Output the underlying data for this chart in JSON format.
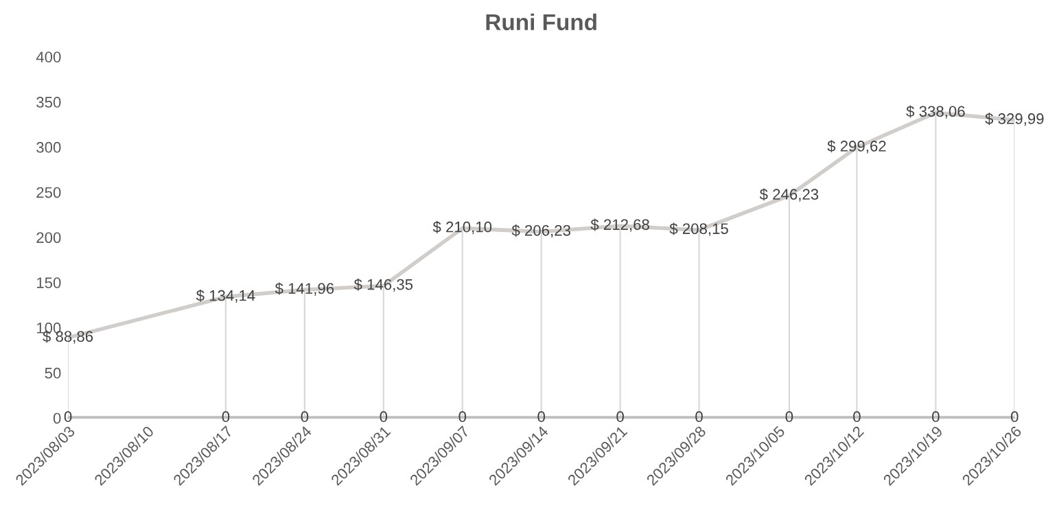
{
  "chart_data": {
    "type": "line",
    "title": "Runi Fund",
    "x": [
      "2023-08-03",
      "2023-08-17",
      "2023-08-24",
      "2023-08-31",
      "2023-09-07",
      "2023-09-14",
      "2023-09-21",
      "2023-09-28",
      "2023-10-06",
      "2023-10-12",
      "2023-10-19",
      "2023-10-26"
    ],
    "series": [
      {
        "color": "#d0cdca",
        "values": [
          88.86,
          134.14,
          141.96,
          146.35,
          210.1,
          206.23,
          212.68,
          208.15,
          246.23,
          299.62,
          338.06,
          329.99
        ],
        "errors": [
          [
            88.86,
            0
          ],
          [
            134.14,
            0
          ],
          [
            141.96,
            0
          ],
          [
            146.35,
            0
          ],
          [
            210.1,
            0
          ],
          [
            206.23,
            0
          ],
          [
            212.68,
            0
          ],
          [
            208.15,
            0
          ],
          [
            246.23,
            0
          ],
          [
            299.62,
            0
          ],
          [
            338.06,
            0
          ],
          [
            329.99,
            0
          ]
        ],
        "value_labels": [
          "$ 88,86",
          "$ 134,14",
          "$ 141,96",
          "$ 146,35",
          "$ 210,10",
          "$ 206,23",
          "$ 212,68",
          "$ 208,15",
          "$ 246,23",
          "$ 299,62",
          "$ 338,06",
          "$ 329,99"
        ]
      },
      {
        "color": "#bfbfbf",
        "values": [
          0,
          0,
          0,
          0,
          0,
          0,
          0,
          0,
          0,
          0,
          0,
          0
        ],
        "value_labels": [
          "0",
          "0",
          "0",
          "0",
          "0",
          "0",
          "0",
          "0",
          "0",
          "0",
          "0",
          "0"
        ]
      }
    ],
    "xlim": [
      "2023-08-03",
      "2023-10-26"
    ],
    "xticks": [
      {
        "value": "2023-08-03",
        "label": "2023/08/03"
      },
      {
        "value": "2023-08-10",
        "label": "2023/08/10"
      },
      {
        "value": "2023-08-17",
        "label": "2023/08/17"
      },
      {
        "value": "2023-08-24",
        "label": "2023/08/24"
      },
      {
        "value": "2023-08-31",
        "label": "2023/08/31"
      },
      {
        "value": "2023-09-07",
        "label": "2023/09/07"
      },
      {
        "value": "2023-09-14",
        "label": "2023/09/14"
      },
      {
        "value": "2023-09-21",
        "label": "2023/09/21"
      },
      {
        "value": "2023-09-28",
        "label": "2023/09/28"
      },
      {
        "value": "2023-10-05",
        "label": "2023/10/05"
      },
      {
        "value": "2023-10-12",
        "label": "2023/10/12"
      },
      {
        "value": "2023-10-19",
        "label": "2023/10/19"
      },
      {
        "value": "2023-10-26",
        "label": "2023/10/26"
      }
    ],
    "ylim": [
      0,
      400
    ],
    "yticks": [
      0,
      50,
      100,
      150,
      200,
      250,
      300,
      350,
      400
    ],
    "grid": false,
    "legend": false,
    "marker": "none",
    "line_style": "solid"
  }
}
